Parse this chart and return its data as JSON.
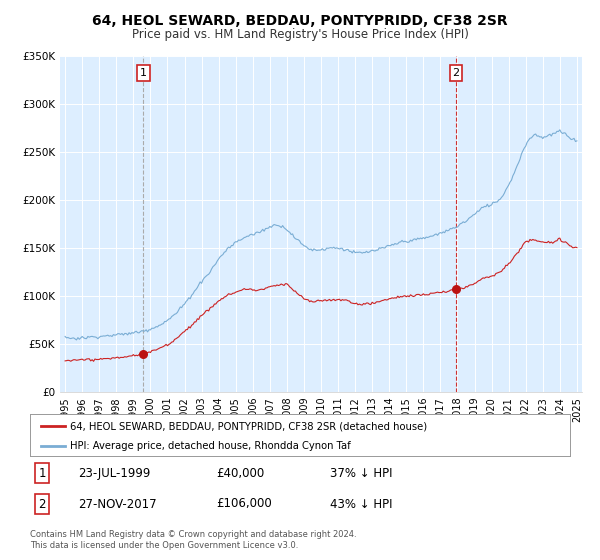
{
  "title": "64, HEOL SEWARD, BEDDAU, PONTYPRIDD, CF38 2SR",
  "subtitle": "Price paid vs. HM Land Registry's House Price Index (HPI)",
  "legend_line1": "64, HEOL SEWARD, BEDDAU, PONTYPRIDD, CF38 2SR (detached house)",
  "legend_line2": "HPI: Average price, detached house, Rhondda Cynon Taf",
  "annotation1_label": "1",
  "annotation1_date": "23-JUL-1999",
  "annotation1_price": "£40,000",
  "annotation1_hpi": "37% ↓ HPI",
  "annotation2_label": "2",
  "annotation2_date": "27-NOV-2017",
  "annotation2_price": "£106,000",
  "annotation2_hpi": "43% ↓ HPI",
  "footer1": "Contains HM Land Registry data © Crown copyright and database right 2024.",
  "footer2": "This data is licensed under the Open Government Licence v3.0.",
  "hpi_color": "#7aadd4",
  "price_color": "#cc2222",
  "marker_color": "#bb1111",
  "vline1_color": "#aaaaaa",
  "vline2_color": "#cc3333",
  "background_color": "#ddeeff",
  "ylim": [
    0,
    350000
  ],
  "yticks": [
    0,
    50000,
    100000,
    150000,
    200000,
    250000,
    300000,
    350000
  ],
  "xlabel_start": 1995,
  "xlabel_end": 2025,
  "sale1_year": 1999.55,
  "sale1_value": 40000,
  "sale2_year": 2017.9,
  "sale2_value": 106000,
  "hpi_keypoints_x": [
    1995.0,
    1995.5,
    1996.0,
    1996.5,
    1997.0,
    1997.5,
    1998.0,
    1998.5,
    1999.0,
    1999.5,
    2000.0,
    2000.5,
    2001.0,
    2001.5,
    2002.0,
    2002.5,
    2003.0,
    2003.5,
    2004.0,
    2004.5,
    2005.0,
    2005.5,
    2006.0,
    2006.5,
    2007.0,
    2007.5,
    2008.0,
    2008.5,
    2009.0,
    2009.5,
    2010.0,
    2010.5,
    2011.0,
    2011.5,
    2012.0,
    2012.5,
    2013.0,
    2013.5,
    2014.0,
    2014.5,
    2015.0,
    2015.5,
    2016.0,
    2016.5,
    2017.0,
    2017.5,
    2018.0,
    2018.5,
    2019.0,
    2019.5,
    2020.0,
    2020.5,
    2021.0,
    2021.5,
    2022.0,
    2022.5,
    2023.0,
    2023.5,
    2024.0,
    2024.5,
    2025.0
  ],
  "hpi_keypoints_y": [
    57000,
    56000,
    56500,
    57500,
    58000,
    59000,
    60000,
    61000,
    62000,
    63500,
    66000,
    70000,
    75000,
    82000,
    92000,
    103000,
    115000,
    125000,
    138000,
    148000,
    155000,
    160000,
    163000,
    167000,
    172000,
    175000,
    170000,
    160000,
    152000,
    148000,
    148000,
    150000,
    150000,
    148000,
    145000,
    145000,
    147000,
    149000,
    152000,
    155000,
    157000,
    158000,
    160000,
    162000,
    165000,
    168000,
    172000,
    178000,
    185000,
    192000,
    195000,
    200000,
    215000,
    235000,
    258000,
    268000,
    265000,
    268000,
    272000,
    265000,
    262000
  ],
  "price_keypoints_x": [
    1995.0,
    1995.5,
    1996.0,
    1996.5,
    1997.0,
    1997.5,
    1998.0,
    1998.5,
    1999.0,
    1999.55,
    2000.0,
    2000.5,
    2001.0,
    2001.5,
    2002.0,
    2002.5,
    2003.0,
    2003.5,
    2004.0,
    2004.5,
    2005.0,
    2005.5,
    2006.0,
    2006.5,
    2007.0,
    2007.5,
    2008.0,
    2008.5,
    2009.0,
    2009.5,
    2010.0,
    2010.5,
    2011.0,
    2011.5,
    2012.0,
    2012.5,
    2013.0,
    2013.5,
    2014.0,
    2014.5,
    2015.0,
    2015.5,
    2016.0,
    2016.5,
    2017.0,
    2017.5,
    2017.9,
    2018.5,
    2019.0,
    2019.5,
    2020.0,
    2020.5,
    2021.0,
    2021.5,
    2022.0,
    2022.5,
    2023.0,
    2023.5,
    2024.0,
    2024.5,
    2025.0
  ],
  "price_keypoints_y": [
    33000,
    33000,
    33500,
    34000,
    34500,
    35000,
    36000,
    37000,
    38000,
    40000,
    42000,
    46000,
    50000,
    56000,
    64000,
    72000,
    80000,
    88000,
    96000,
    102000,
    105000,
    108000,
    107000,
    107000,
    110000,
    112000,
    113000,
    105000,
    98000,
    95000,
    96000,
    97000,
    97000,
    96000,
    93000,
    92000,
    93000,
    95000,
    97000,
    99000,
    100000,
    100000,
    101000,
    102000,
    103000,
    104000,
    106000,
    108000,
    112000,
    118000,
    120000,
    124000,
    132000,
    143000,
    155000,
    158000,
    155000,
    155000,
    158000,
    153000,
    150000
  ]
}
